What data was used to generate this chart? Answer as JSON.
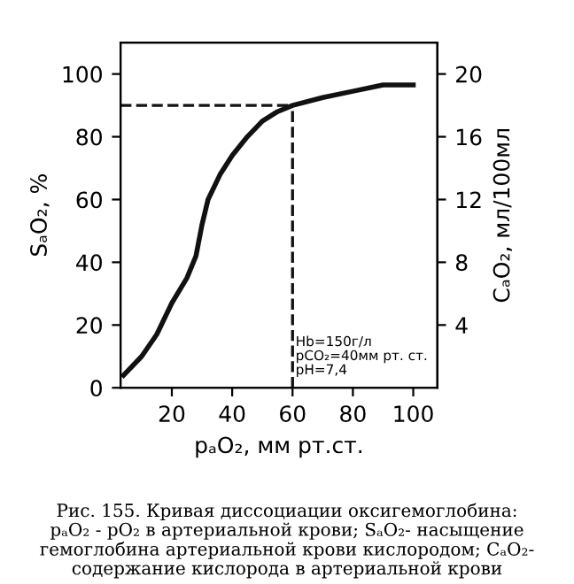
{
  "chart_data": {
    "type": "line",
    "x": [
      4,
      10,
      15,
      20,
      25,
      28,
      30,
      32,
      36,
      40,
      45,
      50,
      55,
      60,
      70,
      80,
      90,
      100
    ],
    "series": [
      {
        "color": "#111111",
        "values": [
          4,
          10,
          17,
          27,
          35,
          42,
          52,
          60,
          68,
          74,
          80,
          85,
          88,
          90,
          92.5,
          94.5,
          96.5,
          96.5
        ]
      }
    ],
    "xlim": [
      3,
      108
    ],
    "xticks": [
      20,
      40,
      60,
      80,
      100
    ],
    "ylim": [
      0,
      110
    ],
    "yticks": [
      0,
      20,
      40,
      60,
      80,
      100
    ],
    "y2lim": [
      0,
      22
    ],
    "y2ticks": [
      4,
      8,
      12,
      16,
      20
    ],
    "xlabel": "pₐO₂, мм рт.ст.",
    "ylabel": "SₐO₂, %",
    "y2label": "CₐO₂, мл/100мл",
    "ref_lines": [
      {
        "axis": "y",
        "value": 90,
        "line_style": "dashed",
        "color": "#111111"
      },
      {
        "axis": "x",
        "value": 60,
        "line_style": "dashed",
        "color": "#111111"
      }
    ],
    "annotations": [
      {
        "text": "Hb=150г/л\npCO₂=40мм рт. ст.\npH=7,4",
        "x": 60,
        "y": 10
      },
      "Рис. 155. Кривая диссоциации оксигемоглобина:\npₐO₂ - pO₂ в артериальной крови; SₐO₂- насыщение\nгемоглобина артериальной крови кислородом; CₐO₂-\nсодержание кислорода в артериальной крови"
    ],
    "grid": false,
    "legend": false,
    "line_style": "solid",
    "marker": "none"
  }
}
